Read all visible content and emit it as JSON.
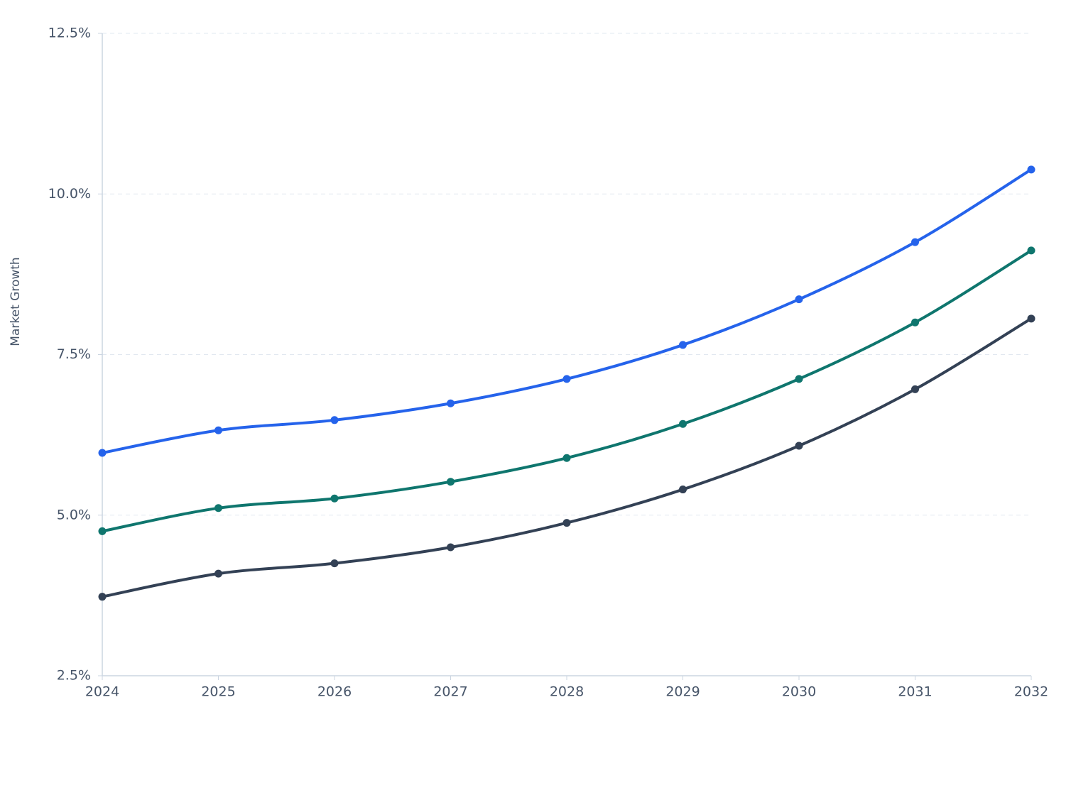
{
  "chart_data": {
    "type": "line",
    "y_label": "Market Growth",
    "categories": [
      "2024",
      "2025",
      "2026",
      "2027",
      "2028",
      "2029",
      "2030",
      "2031",
      "2032"
    ],
    "series": [
      {
        "color": "#2563eb",
        "values": [
          5.97,
          6.32,
          6.48,
          6.74,
          7.12,
          7.65,
          8.36,
          9.25,
          10.38
        ]
      },
      {
        "color": "#0f766e",
        "values": [
          4.75,
          5.11,
          5.26,
          5.52,
          5.89,
          6.42,
          7.12,
          8.0,
          9.12
        ]
      },
      {
        "color": "#334155",
        "values": [
          3.73,
          4.09,
          4.25,
          4.5,
          4.88,
          5.4,
          6.08,
          6.96,
          8.06
        ]
      }
    ],
    "ylim": [
      2.5,
      12.5
    ],
    "yticks": [
      {
        "value": 2.5,
        "label": "2.5%"
      },
      {
        "value": 5,
        "label": "5.0%"
      },
      {
        "value": 7.5,
        "label": "7.5%"
      },
      {
        "value": 10,
        "label": "10.0%"
      },
      {
        "value": 12.5,
        "label": "12.5%"
      }
    ],
    "grid": true
  }
}
